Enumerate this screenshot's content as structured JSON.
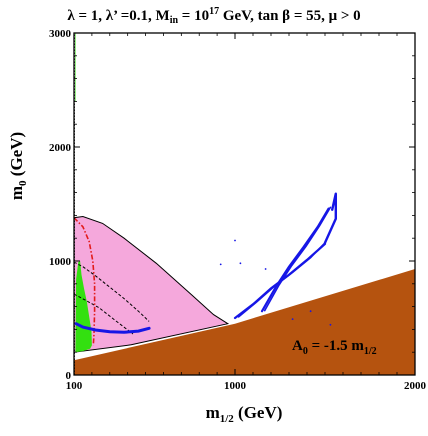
{
  "chart_data": {
    "type": "area",
    "title": {
      "p1": "λ = 1, λ’ =0.1, M",
      "sub1": "in",
      "p2": " = 10",
      "sup": "17",
      "p3": " GeV, tan β = 55,  μ > 0"
    },
    "xlabel": {
      "main": "m",
      "sub": "1/2",
      "unit": " (GeV)"
    },
    "ylabel": {
      "main": "m",
      "sub": "0",
      "unit": " (GeV)"
    },
    "xlim": [
      100,
      2000
    ],
    "ylim": [
      0,
      3000
    ],
    "x_axis_break": 1000,
    "x_ticks": [
      {
        "v": 100,
        "label": "100"
      },
      {
        "v": 1000,
        "label": "1000"
      },
      {
        "v": 2000,
        "label": "2000"
      }
    ],
    "y_ticks": [
      {
        "v": 0,
        "label": "0"
      },
      {
        "v": 1000,
        "label": "1000"
      },
      {
        "v": 2000,
        "label": "2000"
      },
      {
        "v": 3000,
        "label": "3000"
      }
    ],
    "annotation": {
      "p1": "A",
      "sub": "0",
      "p2": " = -1.5 m",
      "sub2": "1/2"
    },
    "colors": {
      "brown": "#b5530f",
      "pink": "#f5a8dc",
      "green": "#33e010",
      "blue": "#1616e6",
      "red": "#e21b1b",
      "black": "#000000"
    },
    "regions": {
      "brown_excluded": [
        [
          100,
          130
        ],
        [
          1000,
          450
        ],
        [
          2000,
          930
        ],
        [
          2000,
          0
        ],
        [
          100,
          0
        ]
      ],
      "pink_region": [
        [
          100,
          200
        ],
        [
          100,
          1380
        ],
        [
          150,
          1390
        ],
        [
          260,
          1330
        ],
        [
          380,
          1200
        ],
        [
          560,
          980
        ],
        [
          760,
          700
        ],
        [
          880,
          530
        ],
        [
          960,
          450
        ],
        [
          420,
          265
        ],
        [
          100,
          200
        ]
      ],
      "green_region": [
        [
          108,
          200
        ],
        [
          112,
          840
        ],
        [
          124,
          990
        ],
        [
          134,
          1000
        ],
        [
          142,
          880
        ],
        [
          156,
          760
        ],
        [
          172,
          640
        ],
        [
          186,
          500
        ],
        [
          198,
          380
        ],
        [
          200,
          260
        ],
        [
          190,
          230
        ],
        [
          150,
          210
        ],
        [
          108,
          200
        ]
      ],
      "green_strip": [
        [
          106,
          2400
        ],
        [
          109,
          2400
        ],
        [
          109,
          3000
        ],
        [
          106,
          3000
        ]
      ]
    },
    "curves": {
      "blue_lower": [
        [
          112,
          450
        ],
        [
          150,
          420
        ],
        [
          220,
          395
        ],
        [
          300,
          380
        ],
        [
          380,
          375
        ],
        [
          460,
          385
        ],
        [
          520,
          410
        ]
      ],
      "blue_upper_left": [
        [
          1000,
          500
        ],
        [
          1100,
          620
        ],
        [
          1200,
          760
        ],
        [
          1300,
          880
        ],
        [
          1400,
          1010
        ],
        [
          1500,
          1150
        ]
      ],
      "blue_upper_left_2": [
        [
          1020,
          510
        ],
        [
          1120,
          640
        ],
        [
          1220,
          780
        ],
        [
          1320,
          900
        ],
        [
          1420,
          1030
        ],
        [
          1500,
          1160
        ]
      ],
      "blue_upper_right": [
        [
          1150,
          560
        ],
        [
          1230,
          780
        ],
        [
          1300,
          950
        ],
        [
          1380,
          1120
        ],
        [
          1460,
          1300
        ],
        [
          1520,
          1460
        ]
      ],
      "blue_upper_right_2": [
        [
          1165,
          565
        ],
        [
          1245,
          790
        ],
        [
          1315,
          960
        ],
        [
          1395,
          1130
        ],
        [
          1470,
          1310
        ],
        [
          1530,
          1470
        ]
      ],
      "blue_tip": [
        [
          1500,
          1160
        ],
        [
          1560,
          1370
        ],
        [
          1560,
          1590
        ],
        [
          1540,
          1450
        ]
      ],
      "red_dashdot": [
        [
          100,
          1380
        ],
        [
          150,
          1300
        ],
        [
          185,
          1170
        ],
        [
          205,
          1000
        ],
        [
          215,
          800
        ],
        [
          215,
          560
        ],
        [
          212,
          360
        ],
        [
          208,
          260
        ]
      ],
      "black_dashed_1": [
        [
          100,
          990
        ],
        [
          150,
          950
        ],
        [
          220,
          870
        ],
        [
          300,
          770
        ],
        [
          380,
          670
        ],
        [
          460,
          560
        ],
        [
          520,
          470
        ]
      ],
      "black_dashed_2": [
        [
          100,
          710
        ],
        [
          160,
          660
        ],
        [
          240,
          590
        ],
        [
          330,
          480
        ],
        [
          430,
          360
        ]
      ],
      "black_dotted_left": [
        [
          100,
          0
        ],
        [
          100,
          3000
        ]
      ],
      "black_dotted_right": [
        [
          102,
          0
        ],
        [
          102,
          3000
        ]
      ],
      "scatter_specks": [
        [
          920,
          970
        ],
        [
          1000,
          1180
        ],
        [
          1030,
          980
        ],
        [
          1170,
          930
        ],
        [
          1320,
          490
        ],
        [
          1420,
          560
        ],
        [
          1530,
          440
        ]
      ]
    }
  }
}
